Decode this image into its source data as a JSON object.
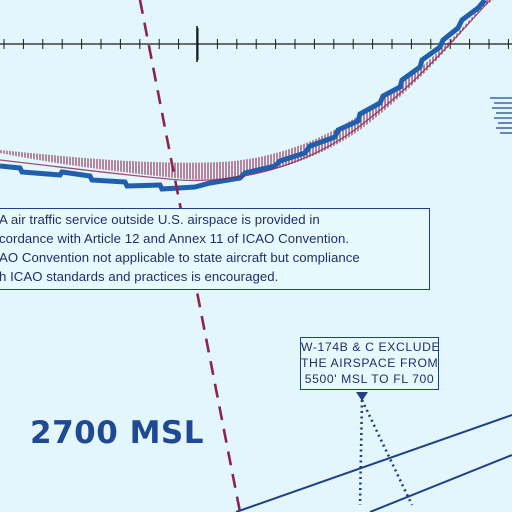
{
  "map": {
    "colors": {
      "background": "#e3f6fb",
      "boundary_blue": "#1f5fae",
      "hatch_red": "#8c2450",
      "text_blue": "#1d2f6b",
      "line_navy": "#1f3f86"
    },
    "notice": {
      "lines": [
        "A air traffic service outside U.S. airspace is provided in",
        "cordance with Article 12 and Annex 11 of ICAO Convention.",
        "AO Convention not applicable to state aircraft but compliance",
        "h ICAO standards and practices is encouraged."
      ]
    },
    "callout": {
      "lines": [
        "W-174B & C EXCLUDE",
        "THE AIRSPACE FROM",
        "5500' MSL TO FL 700"
      ]
    },
    "altitude_label": "2700 MSL"
  }
}
